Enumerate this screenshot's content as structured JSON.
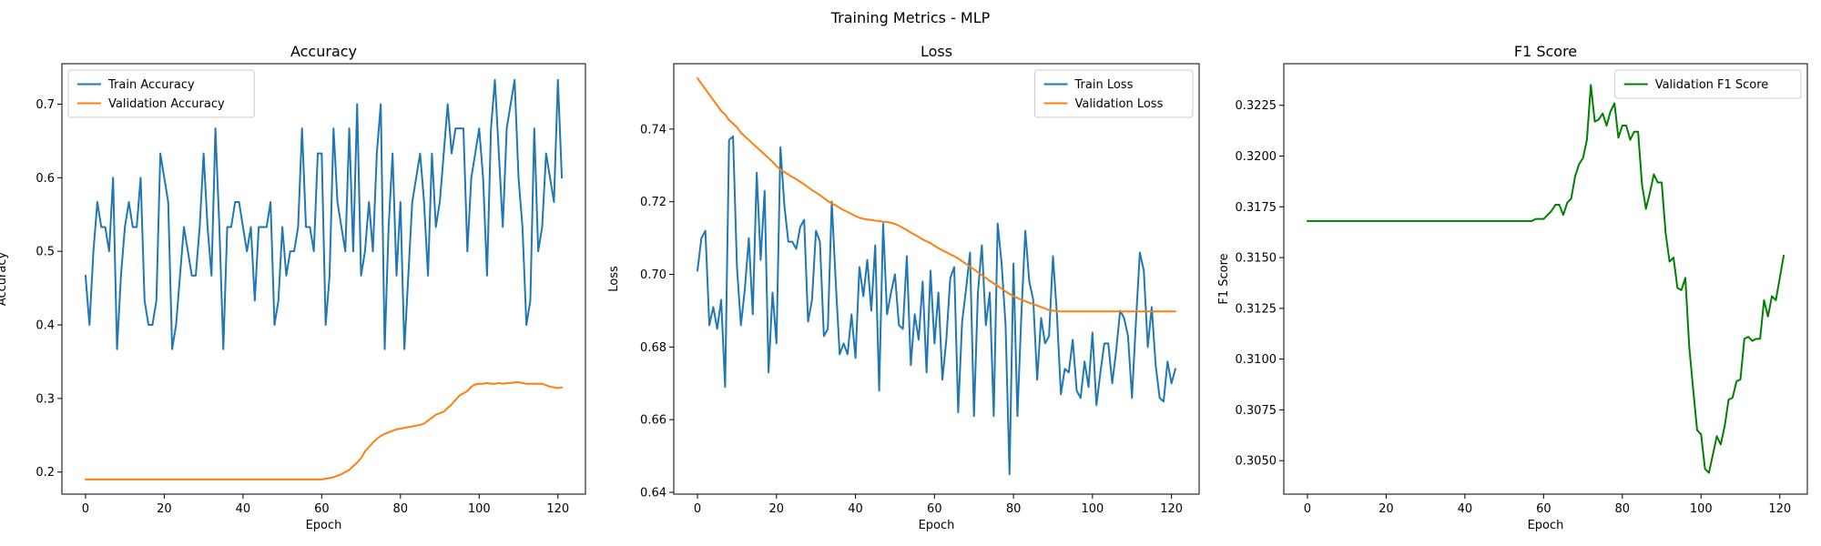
{
  "figure": {
    "suptitle": "Training Metrics - MLP"
  },
  "colors": {
    "blue": "#1f77b4",
    "orange": "#ff7f0e",
    "green": "#008000",
    "axis": "#000000"
  },
  "chart_data": [
    {
      "type": "line",
      "title": "Accuracy",
      "xlabel": "Epoch",
      "ylabel": "Accuracy",
      "xlim": [
        -6,
        127
      ],
      "ylim": [
        0.17,
        0.755
      ],
      "xticks": [
        0,
        20,
        40,
        60,
        80,
        100,
        120
      ],
      "yticks": [
        0.2,
        0.3,
        0.4,
        0.5,
        0.6,
        0.7
      ],
      "ytick_decimals": 1,
      "grid": false,
      "legend_position": "upper-left",
      "series": [
        {
          "name": "Train Accuracy",
          "color": "blue",
          "values": [
            0.467,
            0.4,
            0.5,
            0.567,
            0.533,
            0.533,
            0.5,
            0.6,
            0.367,
            0.467,
            0.533,
            0.567,
            0.533,
            0.533,
            0.6,
            0.433,
            0.4,
            0.4,
            0.433,
            0.633,
            0.6,
            0.567,
            0.367,
            0.4,
            0.467,
            0.533,
            0.5,
            0.467,
            0.467,
            0.533,
            0.633,
            0.533,
            0.467,
            0.667,
            0.533,
            0.367,
            0.533,
            0.533,
            0.567,
            0.567,
            0.533,
            0.5,
            0.533,
            0.433,
            0.533,
            0.533,
            0.533,
            0.567,
            0.4,
            0.433,
            0.533,
            0.467,
            0.5,
            0.5,
            0.533,
            0.667,
            0.533,
            0.533,
            0.5,
            0.633,
            0.633,
            0.4,
            0.467,
            0.667,
            0.567,
            0.533,
            0.5,
            0.667,
            0.5,
            0.7,
            0.467,
            0.5,
            0.567,
            0.5,
            0.633,
            0.7,
            0.367,
            0.533,
            0.633,
            0.467,
            0.567,
            0.367,
            0.467,
            0.567,
            0.6,
            0.633,
            0.567,
            0.467,
            0.633,
            0.533,
            0.567,
            0.633,
            0.7,
            0.633,
            0.667,
            0.667,
            0.667,
            0.5,
            0.6,
            0.633,
            0.667,
            0.6,
            0.467,
            0.667,
            0.733,
            0.633,
            0.533,
            0.667,
            0.7,
            0.733,
            0.6,
            0.533,
            0.4,
            0.433,
            0.667,
            0.5,
            0.533,
            0.633,
            0.6,
            0.567,
            0.733,
            0.6
          ]
        },
        {
          "name": "Validation Accuracy",
          "color": "orange",
          "values": [
            0.19,
            0.19,
            0.19,
            0.19,
            0.19,
            0.19,
            0.19,
            0.19,
            0.19,
            0.19,
            0.19,
            0.19,
            0.19,
            0.19,
            0.19,
            0.19,
            0.19,
            0.19,
            0.19,
            0.19,
            0.19,
            0.19,
            0.19,
            0.19,
            0.19,
            0.19,
            0.19,
            0.19,
            0.19,
            0.19,
            0.19,
            0.19,
            0.19,
            0.19,
            0.19,
            0.19,
            0.19,
            0.19,
            0.19,
            0.19,
            0.19,
            0.19,
            0.19,
            0.19,
            0.19,
            0.19,
            0.19,
            0.19,
            0.19,
            0.19,
            0.19,
            0.19,
            0.19,
            0.19,
            0.19,
            0.19,
            0.19,
            0.19,
            0.19,
            0.19,
            0.19,
            0.191,
            0.192,
            0.193,
            0.195,
            0.197,
            0.2,
            0.203,
            0.208,
            0.213,
            0.219,
            0.228,
            0.234,
            0.24,
            0.245,
            0.249,
            0.252,
            0.254,
            0.256,
            0.258,
            0.259,
            0.26,
            0.261,
            0.262,
            0.263,
            0.264,
            0.266,
            0.27,
            0.274,
            0.278,
            0.28,
            0.282,
            0.287,
            0.292,
            0.298,
            0.304,
            0.307,
            0.31,
            0.316,
            0.319,
            0.32,
            0.32,
            0.321,
            0.32,
            0.32,
            0.321,
            0.32,
            0.321,
            0.321,
            0.322,
            0.322,
            0.321,
            0.32,
            0.32,
            0.32,
            0.32,
            0.32,
            0.318,
            0.316,
            0.315,
            0.314,
            0.315
          ]
        }
      ]
    },
    {
      "type": "line",
      "title": "Loss",
      "xlabel": "Epoch",
      "ylabel": "Loss",
      "xlim": [
        -6,
        127
      ],
      "ylim": [
        0.6395,
        0.758
      ],
      "xticks": [
        0,
        20,
        40,
        60,
        80,
        100,
        120
      ],
      "yticks": [
        0.64,
        0.66,
        0.68,
        0.7,
        0.72,
        0.74
      ],
      "ytick_decimals": 2,
      "grid": false,
      "legend_position": "upper-right",
      "series": [
        {
          "name": "Train Loss",
          "color": "blue",
          "values": [
            0.701,
            0.71,
            0.712,
            0.686,
            0.691,
            0.685,
            0.693,
            0.669,
            0.737,
            0.738,
            0.702,
            0.686,
            0.696,
            0.71,
            0.689,
            0.728,
            0.704,
            0.723,
            0.673,
            0.695,
            0.681,
            0.735,
            0.719,
            0.709,
            0.709,
            0.707,
            0.713,
            0.715,
            0.687,
            0.693,
            0.712,
            0.709,
            0.683,
            0.685,
            0.72,
            0.698,
            0.678,
            0.681,
            0.678,
            0.689,
            0.677,
            0.702,
            0.694,
            0.704,
            0.69,
            0.708,
            0.668,
            0.714,
            0.689,
            0.695,
            0.7,
            0.686,
            0.685,
            0.705,
            0.675,
            0.689,
            0.682,
            0.698,
            0.673,
            0.701,
            0.681,
            0.695,
            0.671,
            0.682,
            0.699,
            0.702,
            0.662,
            0.687,
            0.696,
            0.706,
            0.661,
            0.695,
            0.708,
            0.686,
            0.695,
            0.661,
            0.714,
            0.703,
            0.686,
            0.645,
            0.703,
            0.661,
            0.689,
            0.712,
            0.698,
            0.693,
            0.671,
            0.688,
            0.681,
            0.683,
            0.705,
            0.689,
            0.667,
            0.674,
            0.673,
            0.682,
            0.668,
            0.666,
            0.676,
            0.669,
            0.684,
            0.664,
            0.673,
            0.681,
            0.681,
            0.67,
            0.679,
            0.69,
            0.688,
            0.683,
            0.666,
            0.687,
            0.706,
            0.701,
            0.68,
            0.691,
            0.675,
            0.666,
            0.665,
            0.676,
            0.67,
            0.674
          ]
        },
        {
          "name": "Validation Loss",
          "color": "orange",
          "values": [
            0.754,
            0.7525,
            0.751,
            0.7495,
            0.748,
            0.7465,
            0.745,
            0.744,
            0.7425,
            0.7415,
            0.7405,
            0.739,
            0.738,
            0.737,
            0.736,
            0.735,
            0.734,
            0.733,
            0.732,
            0.731,
            0.7298,
            0.7288,
            0.7282,
            0.7275,
            0.7268,
            0.7262,
            0.7255,
            0.7248,
            0.724,
            0.7232,
            0.7225,
            0.7218,
            0.721,
            0.7202,
            0.7195,
            0.719,
            0.7183,
            0.7177,
            0.7172,
            0.7166,
            0.7161,
            0.7156,
            0.7153,
            0.7151,
            0.715,
            0.7148,
            0.7147,
            0.7145,
            0.7144,
            0.7142,
            0.7139,
            0.7134,
            0.7128,
            0.7122,
            0.7115,
            0.7109,
            0.7103,
            0.7096,
            0.7091,
            0.7086,
            0.7079,
            0.7072,
            0.7066,
            0.7061,
            0.7055,
            0.705,
            0.7044,
            0.7036,
            0.7029,
            0.7021,
            0.7014,
            0.7006,
            0.6998,
            0.699,
            0.6982,
            0.6975,
            0.6968,
            0.6961,
            0.6953,
            0.6946,
            0.694,
            0.6935,
            0.693,
            0.6926,
            0.6922,
            0.6918,
            0.6914,
            0.691,
            0.6906,
            0.6902,
            0.69,
            0.6899,
            0.6898,
            0.6898,
            0.6898,
            0.6898,
            0.6898,
            0.6898,
            0.6898,
            0.6898,
            0.6898,
            0.6898,
            0.6898,
            0.6898,
            0.6898,
            0.6898,
            0.6898,
            0.6898,
            0.6898,
            0.6898,
            0.6898,
            0.6898,
            0.6898,
            0.6898,
            0.6898,
            0.6898,
            0.6898,
            0.6898,
            0.6898,
            0.6898,
            0.6898,
            0.6898
          ]
        }
      ]
    },
    {
      "type": "line",
      "title": "F1 Score",
      "xlabel": "Epoch",
      "ylabel": "F1 Score",
      "xlim": [
        -6,
        127
      ],
      "ylim": [
        0.30335,
        0.32455
      ],
      "xticks": [
        0,
        20,
        40,
        60,
        80,
        100,
        120
      ],
      "yticks": [
        0.305,
        0.3075,
        0.31,
        0.3125,
        0.315,
        0.3175,
        0.32,
        0.3225
      ],
      "ytick_decimals": 4,
      "grid": false,
      "legend_position": "upper-right",
      "series": [
        {
          "name": "Validation F1 Score",
          "color": "green",
          "values": [
            0.3168,
            0.3168,
            0.3168,
            0.3168,
            0.3168,
            0.3168,
            0.3168,
            0.3168,
            0.3168,
            0.3168,
            0.3168,
            0.3168,
            0.3168,
            0.3168,
            0.3168,
            0.3168,
            0.3168,
            0.3168,
            0.3168,
            0.3168,
            0.3168,
            0.3168,
            0.3168,
            0.3168,
            0.3168,
            0.3168,
            0.3168,
            0.3168,
            0.3168,
            0.3168,
            0.3168,
            0.3168,
            0.3168,
            0.3168,
            0.3168,
            0.3168,
            0.3168,
            0.3168,
            0.3168,
            0.3168,
            0.3168,
            0.3168,
            0.3168,
            0.3168,
            0.3168,
            0.3168,
            0.3168,
            0.3168,
            0.3168,
            0.3168,
            0.3168,
            0.3168,
            0.3168,
            0.3168,
            0.3168,
            0.3168,
            0.3168,
            0.3168,
            0.3169,
            0.3169,
            0.3169,
            0.3171,
            0.3173,
            0.3176,
            0.3176,
            0.3171,
            0.3177,
            0.3179,
            0.319,
            0.3196,
            0.3199,
            0.3208,
            0.3235,
            0.3217,
            0.3218,
            0.3221,
            0.3215,
            0.3222,
            0.3226,
            0.3209,
            0.3215,
            0.3215,
            0.3208,
            0.3212,
            0.3212,
            0.3186,
            0.3174,
            0.3182,
            0.3191,
            0.3187,
            0.3187,
            0.3162,
            0.3148,
            0.315,
            0.3135,
            0.3134,
            0.314,
            0.3106,
            0.3085,
            0.3065,
            0.3063,
            0.3046,
            0.3044,
            0.3053,
            0.3062,
            0.3058,
            0.3067,
            0.308,
            0.3081,
            0.3089,
            0.309,
            0.311,
            0.3111,
            0.3109,
            0.311,
            0.311,
            0.3129,
            0.3121,
            0.3131,
            0.3129,
            0.314,
            0.3151
          ]
        }
      ]
    }
  ]
}
